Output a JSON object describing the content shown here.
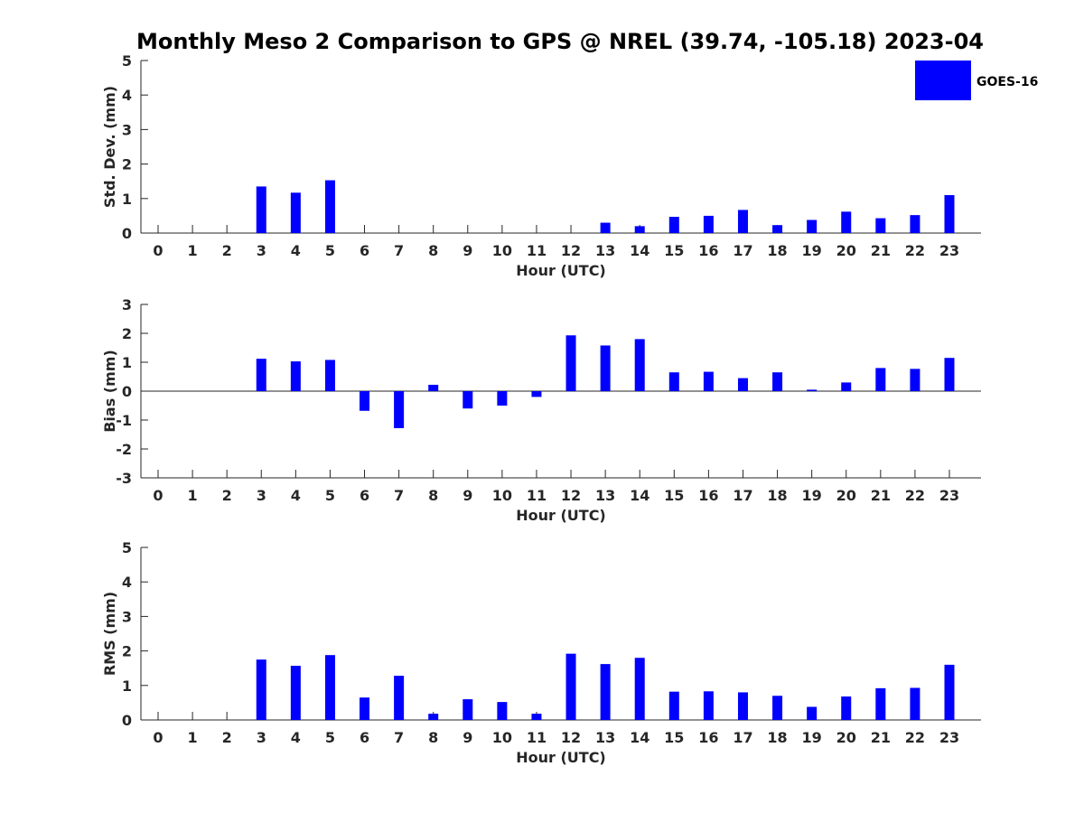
{
  "figure": {
    "title": "Monthly Meso 2 Comparison to GPS @ NREL (39.74, -105.18) 2023-04"
  },
  "legend": {
    "label": "GOES-16",
    "color": "#0000ff",
    "placement": "top-right"
  },
  "chart_data": [
    {
      "type": "bar",
      "title": "",
      "xlabel": "Hour (UTC)",
      "ylabel": "Std. Dev. (mm)",
      "categories": [
        "0",
        "1",
        "2",
        "3",
        "4",
        "5",
        "6",
        "7",
        "8",
        "9",
        "10",
        "11",
        "12",
        "13",
        "14",
        "15",
        "16",
        "17",
        "18",
        "19",
        "20",
        "21",
        "22",
        "23"
      ],
      "series": [
        {
          "name": "GOES-16",
          "color": "#0000ff",
          "values": [
            null,
            null,
            null,
            1.35,
            1.17,
            1.53,
            null,
            null,
            null,
            null,
            null,
            null,
            null,
            0.3,
            0.2,
            0.47,
            0.5,
            0.67,
            0.23,
            0.38,
            0.62,
            0.43,
            0.52,
            1.1
          ]
        }
      ],
      "ylim": [
        0,
        5
      ],
      "yticks": [
        0,
        1,
        2,
        3,
        4,
        5
      ],
      "grid": false
    },
    {
      "type": "bar",
      "title": "",
      "xlabel": "Hour (UTC)",
      "ylabel": "Bias (mm)",
      "categories": [
        "0",
        "1",
        "2",
        "3",
        "4",
        "5",
        "6",
        "7",
        "8",
        "9",
        "10",
        "11",
        "12",
        "13",
        "14",
        "15",
        "16",
        "17",
        "18",
        "19",
        "20",
        "21",
        "22",
        "23"
      ],
      "series": [
        {
          "name": "GOES-16",
          "color": "#0000ff",
          "values": [
            null,
            null,
            null,
            1.12,
            1.03,
            1.08,
            -0.68,
            -1.28,
            0.22,
            -0.6,
            -0.5,
            -0.2,
            1.93,
            1.58,
            1.8,
            0.65,
            0.67,
            0.45,
            0.65,
            0.05,
            0.3,
            0.8,
            0.77,
            1.15
          ]
        }
      ],
      "ylim": [
        -3,
        3
      ],
      "yticks": [
        -3,
        -2,
        -1,
        0,
        1,
        2,
        3
      ],
      "grid": false
    },
    {
      "type": "bar",
      "title": "",
      "xlabel": "Hour (UTC)",
      "ylabel": "RMS (mm)",
      "categories": [
        "0",
        "1",
        "2",
        "3",
        "4",
        "5",
        "6",
        "7",
        "8",
        "9",
        "10",
        "11",
        "12",
        "13",
        "14",
        "15",
        "16",
        "17",
        "18",
        "19",
        "20",
        "21",
        "22",
        "23"
      ],
      "series": [
        {
          "name": "GOES-16",
          "color": "#0000ff",
          "values": [
            null,
            null,
            null,
            1.75,
            1.57,
            1.88,
            0.65,
            1.28,
            0.18,
            0.6,
            0.52,
            0.18,
            1.92,
            1.62,
            1.8,
            0.82,
            0.83,
            0.8,
            0.7,
            0.38,
            0.68,
            0.92,
            0.93,
            1.6
          ]
        }
      ],
      "ylim": [
        0,
        5
      ],
      "yticks": [
        0,
        1,
        2,
        3,
        4,
        5
      ],
      "grid": false
    }
  ]
}
